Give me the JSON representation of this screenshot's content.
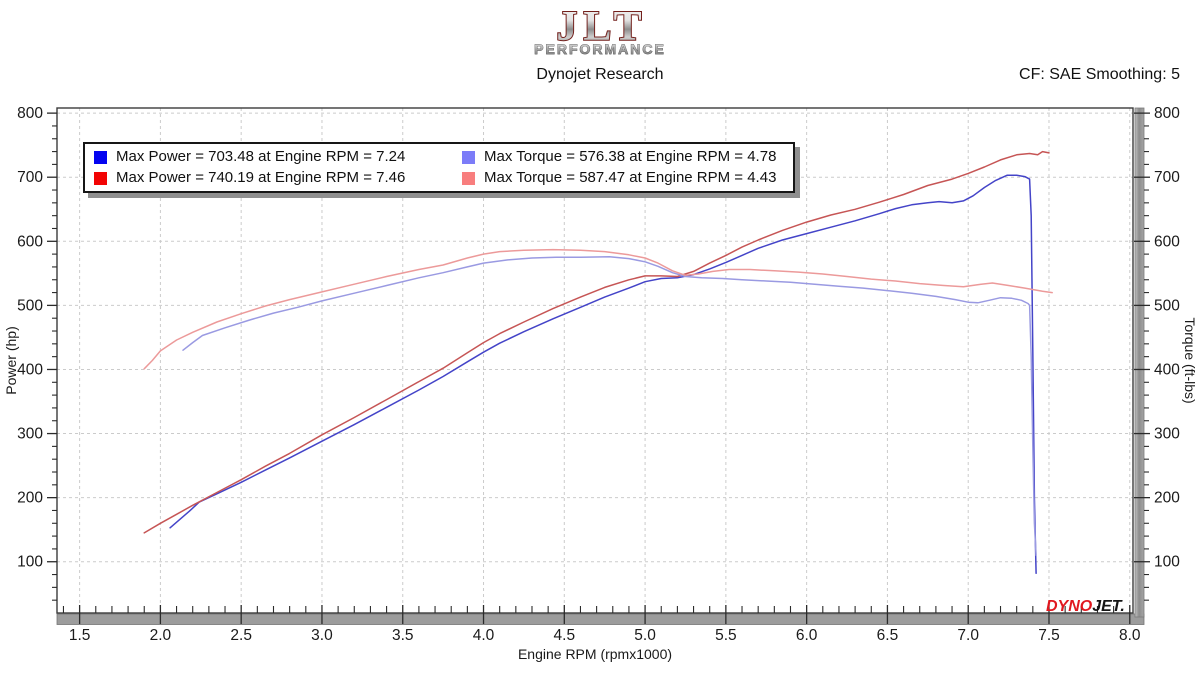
{
  "header": {
    "logo_line1": "JLT",
    "logo_line2": "PERFORMANCE",
    "subtitle": "Dynojet Research",
    "smoothing_note": "CF: SAE Smoothing: 5"
  },
  "watermark": {
    "part1": "DYNO",
    "part2": "JET."
  },
  "chart_data": {
    "type": "line",
    "title": "",
    "xlabel": "Engine RPM (rpmx1000)",
    "ylabel_left": "Power (hp)",
    "ylabel_right": "Torque (ft-lbs)",
    "xlim": [
      1.36,
      8.02
    ],
    "ylim": [
      20,
      808
    ],
    "x_major_ticks": [
      1.5,
      2.0,
      2.5,
      3.0,
      3.5,
      4.0,
      4.5,
      5.0,
      5.5,
      6.0,
      6.5,
      7.0,
      7.5,
      8.0
    ],
    "x_minor_step": 0.1,
    "y_major_ticks": [
      100,
      200,
      300,
      400,
      500,
      600,
      700,
      800
    ],
    "y_minor_step": 20,
    "grid": "dashed",
    "legend_position": "top-left",
    "legend": [
      {
        "swatch": "#0404f0",
        "label": "Max Power = 703.48 at Engine RPM = 7.24"
      },
      {
        "swatch": "#7c7cf8",
        "label": "Max Torque = 576.38 at Engine RPM = 4.78"
      },
      {
        "swatch": "#f20404",
        "label": "Max Power = 740.19 at Engine RPM = 7.46"
      },
      {
        "swatch": "#f87e7e",
        "label": "Max Torque = 587.47 at Engine RPM = 4.43"
      }
    ],
    "series": [
      {
        "name": "power-run-blue",
        "axis": "left",
        "color": "#4444c8",
        "width": 1.5,
        "points": [
          [
            2.06,
            153
          ],
          [
            2.12,
            166
          ],
          [
            2.18,
            179
          ],
          [
            2.24,
            193
          ],
          [
            2.35,
            206
          ],
          [
            2.5,
            224
          ],
          [
            2.65,
            243
          ],
          [
            2.8,
            262
          ],
          [
            3.0,
            288
          ],
          [
            3.2,
            314
          ],
          [
            3.4,
            341
          ],
          [
            3.6,
            368
          ],
          [
            3.75,
            389
          ],
          [
            3.9,
            412
          ],
          [
            4.0,
            427
          ],
          [
            4.1,
            441
          ],
          [
            4.25,
            459
          ],
          [
            4.43,
            479
          ],
          [
            4.6,
            497
          ],
          [
            4.75,
            513
          ],
          [
            4.9,
            527
          ],
          [
            5.0,
            537
          ],
          [
            5.1,
            542
          ],
          [
            5.2,
            543
          ],
          [
            5.3,
            548
          ],
          [
            5.4,
            557
          ],
          [
            5.5,
            567
          ],
          [
            5.6,
            578
          ],
          [
            5.7,
            589
          ],
          [
            5.85,
            602
          ],
          [
            6.0,
            612
          ],
          [
            6.15,
            622
          ],
          [
            6.3,
            632
          ],
          [
            6.45,
            643
          ],
          [
            6.55,
            651
          ],
          [
            6.65,
            657
          ],
          [
            6.75,
            660
          ],
          [
            6.82,
            662
          ],
          [
            6.9,
            660
          ],
          [
            6.97,
            663
          ],
          [
            7.03,
            671
          ],
          [
            7.1,
            684
          ],
          [
            7.17,
            695
          ],
          [
            7.24,
            703
          ],
          [
            7.3,
            703
          ],
          [
            7.35,
            701
          ],
          [
            7.38,
            697
          ],
          [
            7.39,
            640
          ],
          [
            7.4,
            430
          ],
          [
            7.41,
            200
          ],
          [
            7.42,
            82
          ]
        ]
      },
      {
        "name": "power-run-red",
        "axis": "left",
        "color": "#c65555",
        "width": 1.5,
        "points": [
          [
            1.9,
            145
          ],
          [
            2.0,
            160
          ],
          [
            2.1,
            174
          ],
          [
            2.2,
            188
          ],
          [
            2.35,
            208
          ],
          [
            2.5,
            228
          ],
          [
            2.65,
            249
          ],
          [
            2.8,
            269
          ],
          [
            3.0,
            298
          ],
          [
            3.2,
            325
          ],
          [
            3.4,
            353
          ],
          [
            3.6,
            381
          ],
          [
            3.75,
            402
          ],
          [
            3.9,
            426
          ],
          [
            4.0,
            442
          ],
          [
            4.1,
            456
          ],
          [
            4.25,
            474
          ],
          [
            4.43,
            495
          ],
          [
            4.6,
            513
          ],
          [
            4.75,
            528
          ],
          [
            4.9,
            540
          ],
          [
            5.0,
            546
          ],
          [
            5.1,
            546
          ],
          [
            5.2,
            545
          ],
          [
            5.3,
            553
          ],
          [
            5.4,
            566
          ],
          [
            5.5,
            578
          ],
          [
            5.6,
            591
          ],
          [
            5.7,
            602
          ],
          [
            5.85,
            617
          ],
          [
            6.0,
            630
          ],
          [
            6.15,
            641
          ],
          [
            6.3,
            650
          ],
          [
            6.45,
            661
          ],
          [
            6.6,
            673
          ],
          [
            6.75,
            687
          ],
          [
            6.9,
            697
          ],
          [
            7.0,
            706
          ],
          [
            7.1,
            716
          ],
          [
            7.2,
            727
          ],
          [
            7.3,
            735
          ],
          [
            7.38,
            737
          ],
          [
            7.43,
            735
          ],
          [
            7.46,
            740
          ],
          [
            7.5,
            738
          ]
        ]
      },
      {
        "name": "torque-run-blue",
        "axis": "right",
        "color": "#9a9ae2",
        "width": 1.5,
        "points": [
          [
            2.14,
            430
          ],
          [
            2.2,
            442
          ],
          [
            2.26,
            453
          ],
          [
            2.4,
            465
          ],
          [
            2.55,
            477
          ],
          [
            2.7,
            488
          ],
          [
            2.85,
            497
          ],
          [
            3.0,
            507
          ],
          [
            3.2,
            519
          ],
          [
            3.4,
            531
          ],
          [
            3.6,
            543
          ],
          [
            3.75,
            551
          ],
          [
            3.9,
            560
          ],
          [
            4.0,
            566
          ],
          [
            4.15,
            571
          ],
          [
            4.3,
            574
          ],
          [
            4.45,
            575
          ],
          [
            4.6,
            575
          ],
          [
            4.78,
            576
          ],
          [
            4.9,
            573
          ],
          [
            5.0,
            568
          ],
          [
            5.08,
            561
          ],
          [
            5.17,
            551
          ],
          [
            5.25,
            545
          ],
          [
            5.35,
            543
          ],
          [
            5.48,
            542
          ],
          [
            5.6,
            540
          ],
          [
            5.75,
            538
          ],
          [
            5.9,
            536
          ],
          [
            6.05,
            533
          ],
          [
            6.2,
            530
          ],
          [
            6.35,
            527
          ],
          [
            6.5,
            523
          ],
          [
            6.65,
            519
          ],
          [
            6.8,
            514
          ],
          [
            6.92,
            509
          ],
          [
            7.0,
            505
          ],
          [
            7.06,
            504
          ],
          [
            7.13,
            508
          ],
          [
            7.2,
            512
          ],
          [
            7.27,
            511
          ],
          [
            7.33,
            508
          ],
          [
            7.37,
            503
          ],
          [
            7.38,
            500
          ],
          [
            7.39,
            420
          ],
          [
            7.4,
            280
          ],
          [
            7.41,
            160
          ],
          [
            7.42,
            110
          ]
        ]
      },
      {
        "name": "torque-run-red",
        "axis": "right",
        "color": "#ec9a9a",
        "width": 1.5,
        "points": [
          [
            1.9,
            401
          ],
          [
            1.95,
            414
          ],
          [
            2.0,
            429
          ],
          [
            2.1,
            446
          ],
          [
            2.2,
            458
          ],
          [
            2.35,
            474
          ],
          [
            2.5,
            487
          ],
          [
            2.65,
            499
          ],
          [
            2.8,
            509
          ],
          [
            3.0,
            521
          ],
          [
            3.2,
            533
          ],
          [
            3.4,
            545
          ],
          [
            3.6,
            556
          ],
          [
            3.75,
            563
          ],
          [
            3.9,
            574
          ],
          [
            4.0,
            580
          ],
          [
            4.1,
            584
          ],
          [
            4.25,
            586
          ],
          [
            4.43,
            587
          ],
          [
            4.6,
            586
          ],
          [
            4.75,
            584
          ],
          [
            4.9,
            579
          ],
          [
            5.0,
            574
          ],
          [
            5.08,
            566
          ],
          [
            5.17,
            554
          ],
          [
            5.25,
            547
          ],
          [
            5.33,
            549
          ],
          [
            5.42,
            553
          ],
          [
            5.52,
            556
          ],
          [
            5.65,
            556
          ],
          [
            5.8,
            554
          ],
          [
            5.95,
            552
          ],
          [
            6.1,
            549
          ],
          [
            6.25,
            545
          ],
          [
            6.4,
            541
          ],
          [
            6.55,
            538
          ],
          [
            6.7,
            534
          ],
          [
            6.85,
            531
          ],
          [
            6.97,
            529
          ],
          [
            7.08,
            533
          ],
          [
            7.15,
            535
          ],
          [
            7.25,
            531
          ],
          [
            7.35,
            527
          ],
          [
            7.46,
            522
          ],
          [
            7.52,
            520
          ]
        ]
      }
    ]
  }
}
